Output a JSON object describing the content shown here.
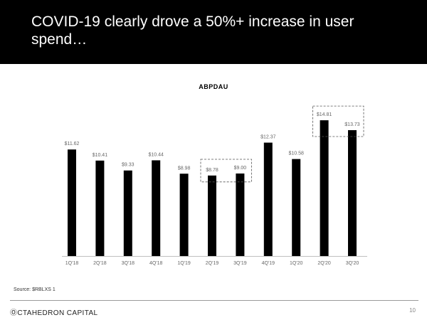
{
  "slide": {
    "title": "COVID-19 clearly drove a 50%+ increase in user spend…",
    "source": "Source: $RBLXS 1",
    "brand": "ⓄCTAHEDRON CAPITAL",
    "page_number": "10"
  },
  "colors": {
    "banner": "#000000",
    "bar": "#000000",
    "highlight_box": "#555555"
  },
  "chart_data": {
    "type": "bar",
    "title": "ABPDAU",
    "categories": [
      "1Q'18",
      "2Q'18",
      "3Q'18",
      "4Q'18",
      "1Q'19",
      "2Q'19",
      "3Q'19",
      "4Q'19",
      "1Q'20",
      "2Q'20",
      "3Q'20"
    ],
    "values": [
      11.62,
      10.41,
      9.33,
      10.44,
      8.98,
      8.78,
      9.0,
      12.37,
      10.58,
      14.81,
      13.73
    ],
    "data_labels": [
      "$11.62",
      "$10.41",
      "$9.33",
      "$10.44",
      "$8.98",
      "$8.78",
      "$9.00",
      "$12.37",
      "$10.58",
      "$14.81",
      "$13.73"
    ],
    "ylim": [
      0,
      18
    ],
    "grid": false,
    "highlight_groups": [
      [
        "2Q'19",
        "3Q'19"
      ],
      [
        "2Q'20",
        "3Q'20"
      ]
    ]
  }
}
